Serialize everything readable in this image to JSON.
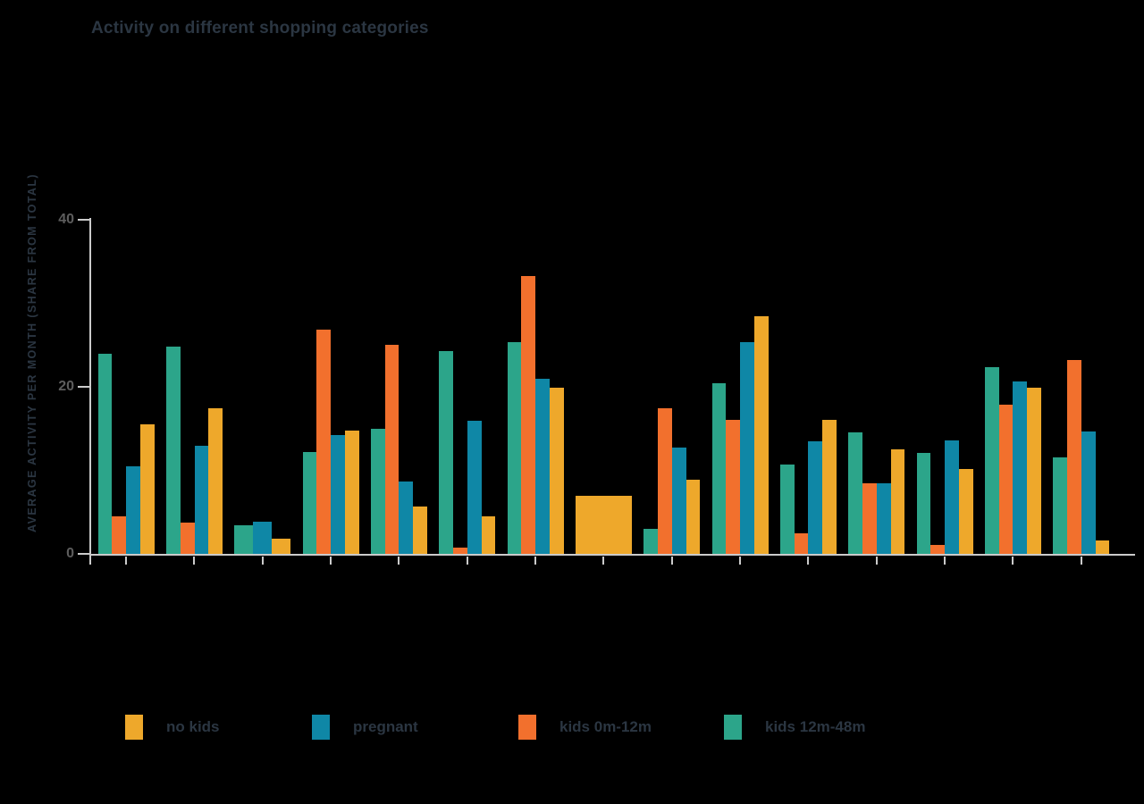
{
  "title": "Activity on different shopping categories",
  "colors": {
    "background": "#000000",
    "axis_line": "#cbcbcb",
    "tick_label_text": "#5d5d5d",
    "heading_text": "#2b3642",
    "no_kids": "#eea82b",
    "pregnant": "#0f87a6",
    "kids_0m_12m": "#f2702d",
    "kids_12m_48m": "#2ca58a"
  },
  "chart_data": {
    "type": "bar",
    "title": "Activity on different shopping categories",
    "xlabel": "",
    "ylabel": "AVERAGE ACTIVITY PER MONTH (SHARE FROM TOTAL)",
    "ylim": [
      0,
      40
    ],
    "grid": false,
    "legend_position": "bottom",
    "categories": [
      "",
      "",
      "",
      "",
      "",
      "",
      "",
      "",
      "",
      "",
      "",
      "",
      "",
      "",
      ""
    ],
    "yticks": [
      {
        "label": "40",
        "value": 40
      },
      {
        "label": "20",
        "value": 20
      },
      {
        "label": "0",
        "value": 0
      }
    ],
    "series": [
      {
        "name": "kids 12m-48m",
        "color": "#2ca58a",
        "values": [
          24.0,
          24.8,
          3.4,
          12.2,
          15.0,
          24.3,
          25.4,
          null,
          3.0,
          20.4,
          10.7,
          14.5,
          12.1,
          22.4,
          11.6
        ]
      },
      {
        "name": "kids 0m-12m",
        "color": "#f2702d",
        "values": [
          4.5,
          3.7,
          null,
          26.8,
          25.0,
          0.8,
          33.3,
          null,
          17.4,
          16.0,
          2.5,
          8.4,
          1.1,
          17.9,
          23.2
        ]
      },
      {
        "name": "pregnant",
        "color": "#0f87a6",
        "values": [
          10.5,
          12.9,
          3.8,
          14.2,
          8.7,
          15.9,
          21.0,
          null,
          12.7,
          25.3,
          13.5,
          8.5,
          13.6,
          20.6,
          14.7
        ]
      },
      {
        "name": "no kids",
        "color": "#eea82b",
        "values": [
          15.5,
          17.4,
          1.8,
          14.8,
          5.7,
          4.5,
          19.9,
          7.0,
          8.9,
          28.4,
          16.0,
          12.5,
          10.2,
          19.9,
          1.6
        ]
      }
    ],
    "legend": [
      {
        "label": "no kids",
        "color": "#eea82b"
      },
      {
        "label": "pregnant",
        "color": "#0f87a6"
      },
      {
        "label": "kids 0m-12m",
        "color": "#f2702d"
      },
      {
        "label": "kids 12m-48m",
        "color": "#2ca58a"
      }
    ]
  }
}
